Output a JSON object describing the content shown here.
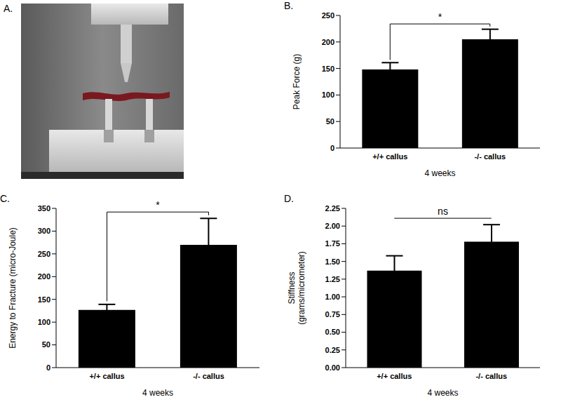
{
  "panel_a": {
    "label": "A."
  },
  "chart_data": [
    {
      "type": "bar",
      "title": "B.",
      "categories": [
        "+/+ callus",
        "-/- callus"
      ],
      "values": [
        148,
        205
      ],
      "errors": [
        13,
        19
      ],
      "color": "#000000",
      "xlabel": "4 weeks",
      "ylabel": "Peak Force (g)",
      "ylim": [
        0,
        250
      ],
      "yticks": [
        0,
        50,
        100,
        150,
        200,
        250
      ],
      "annotation": "*"
    },
    {
      "type": "bar",
      "title": "C.",
      "categories": [
        "+/+ callus",
        "-/- callus"
      ],
      "values": [
        127,
        270
      ],
      "errors": [
        12,
        58
      ],
      "color": "#000000",
      "xlabel": "4 weeks",
      "ylabel": "Energy to Fracture (micro-Joule)",
      "ylim": [
        0,
        350
      ],
      "yticks": [
        0,
        50,
        100,
        150,
        200,
        250,
        300,
        350
      ],
      "annotation": "*"
    },
    {
      "type": "bar",
      "title": "D.",
      "categories": [
        "+/+ callus",
        "-/- callus"
      ],
      "values": [
        1.37,
        1.78
      ],
      "errors": [
        0.21,
        0.24
      ],
      "color": "#000000",
      "xlabel": "4 weeks",
      "ylabel": "Stiffness\n(grams/micrometer)",
      "ylim": [
        0,
        2.25
      ],
      "yticks": [
        {
          "value": 0,
          "label": "0.00"
        },
        {
          "value": 0.25,
          "label": "0.25"
        },
        {
          "value": 0.5,
          "label": "0.50"
        },
        {
          "value": 0.75,
          "label": "0.75"
        },
        {
          "value": 1,
          "label": "1.00"
        },
        {
          "value": 1.25,
          "label": "1.25"
        },
        {
          "value": 1.5,
          "label": "1.50"
        },
        {
          "value": 1.75,
          "label": "1.75"
        },
        {
          "value": 2,
          "label": "2.00"
        },
        {
          "value": 2.25,
          "label": "2.25"
        }
      ],
      "annotation": "ns"
    }
  ]
}
